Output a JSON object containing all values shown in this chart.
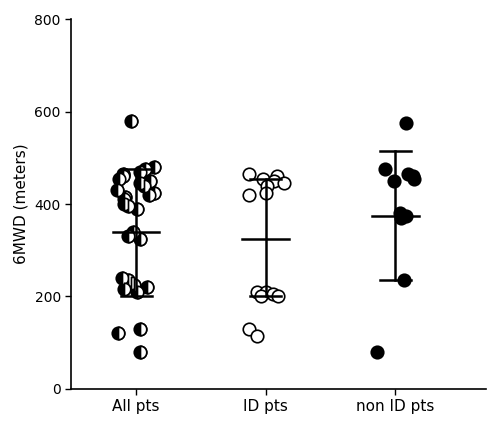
{
  "ylabel": "6MWD (meters)",
  "xlabels": [
    "All pts",
    "ID pts",
    "non ID pts"
  ],
  "ylim": [
    0,
    800
  ],
  "yticks": [
    0,
    200,
    400,
    600,
    800
  ],
  "all_pts": [
    580,
    480,
    475,
    470,
    465,
    460,
    455,
    450,
    445,
    440,
    430,
    425,
    420,
    415,
    410,
    400,
    395,
    390,
    340,
    330,
    325,
    240,
    235,
    230,
    225,
    220,
    215,
    210,
    130,
    120,
    80
  ],
  "id_pts": [
    465,
    460,
    455,
    450,
    445,
    440,
    425,
    420,
    210,
    210,
    205,
    200,
    200,
    130,
    115
  ],
  "non_id_pts": [
    575,
    475,
    465,
    460,
    455,
    450,
    380,
    375,
    370,
    235,
    80
  ],
  "all_mean": 340,
  "all_upper": 475,
  "all_lower": 200,
  "id_mean": 325,
  "id_upper": 455,
  "id_lower": 200,
  "non_id_mean": 375,
  "non_id_upper": 515,
  "non_id_lower": 235,
  "marker_size": 9,
  "lw_marker": 1.2,
  "bar_lw": 1.8,
  "jitter_seed_all": 42,
  "jitter_seed_id": 7,
  "jitter_seed_non": 13,
  "jitter_range": 0.15
}
